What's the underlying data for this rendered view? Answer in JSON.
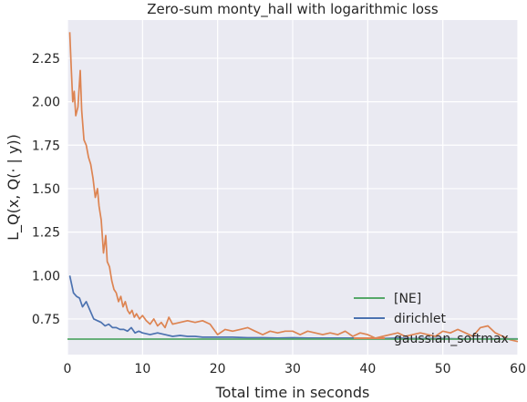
{
  "chart_data": {
    "type": "line",
    "title": "Zero-sum monty_hall with logarithmic loss",
    "xlabel": "Total time in seconds",
    "ylabel": "L_Q(x, Q(· | y))",
    "xlim": [
      0,
      60
    ],
    "ylim": [
      0.545,
      2.47
    ],
    "x_ticks": [
      0,
      10,
      20,
      30,
      40,
      50,
      60
    ],
    "y_ticks": [
      0.75,
      1.0,
      1.25,
      1.5,
      1.75,
      2.0,
      2.25
    ],
    "y_tick_labels": [
      "0.75",
      "1.00",
      "1.25",
      "1.50",
      "1.75",
      "2.00",
      "2.25"
    ],
    "grid": true,
    "legend_position": "bottom-right",
    "series": [
      {
        "name": "[NE]",
        "color": "#55a868",
        "x": [
          0,
          60
        ],
        "y": [
          0.634,
          0.634
        ]
      },
      {
        "name": "dirichlet",
        "color": "#4c72b0",
        "x": [
          0.3,
          0.8,
          1.2,
          1.6,
          2.0,
          2.5,
          3.0,
          3.5,
          4.0,
          4.5,
          5.0,
          5.5,
          6.0,
          6.5,
          7.0,
          7.5,
          8.0,
          8.5,
          9.0,
          9.5,
          10.0,
          11.0,
          12.0,
          13.0,
          14.0,
          15.0,
          16.0,
          17.0,
          18.0,
          19.0,
          20.0,
          22.0,
          24.0,
          26.0,
          28.0,
          30.0,
          32.0,
          34.0,
          36.0,
          38.0,
          40.0,
          42.0,
          44.0,
          46.0,
          48.0,
          50.0,
          52.0,
          54.0,
          56.0,
          58.0,
          60.0
        ],
        "y": [
          1.0,
          0.9,
          0.88,
          0.87,
          0.82,
          0.85,
          0.8,
          0.75,
          0.74,
          0.73,
          0.71,
          0.72,
          0.7,
          0.7,
          0.69,
          0.69,
          0.68,
          0.7,
          0.67,
          0.68,
          0.67,
          0.66,
          0.67,
          0.66,
          0.65,
          0.655,
          0.65,
          0.65,
          0.645,
          0.645,
          0.645,
          0.645,
          0.642,
          0.642,
          0.64,
          0.642,
          0.64,
          0.64,
          0.64,
          0.64,
          0.64,
          0.638,
          0.64,
          0.638,
          0.638,
          0.638,
          0.636,
          0.636,
          0.636,
          0.636,
          0.636
        ]
      },
      {
        "name": "gaussian_softmax",
        "color": "#dd8452",
        "x": [
          0.3,
          0.5,
          0.7,
          0.9,
          1.1,
          1.4,
          1.7,
          1.9,
          2.2,
          2.5,
          2.8,
          3.1,
          3.4,
          3.7,
          4.0,
          4.2,
          4.5,
          4.8,
          5.1,
          5.3,
          5.6,
          5.9,
          6.2,
          6.5,
          6.8,
          7.1,
          7.4,
          7.7,
          8.0,
          8.3,
          8.6,
          8.9,
          9.2,
          9.6,
          10.0,
          10.5,
          11.0,
          11.5,
          12.0,
          12.5,
          13.0,
          13.5,
          14.0,
          15.0,
          16.0,
          17.0,
          18.0,
          19.0,
          20.0,
          21.0,
          22.0,
          23.0,
          24.0,
          25.0,
          26.0,
          27.0,
          28.0,
          29.0,
          30.0,
          31.0,
          32.0,
          33.0,
          34.0,
          35.0,
          36.0,
          37.0,
          38.0,
          39.0,
          40.0,
          41.0,
          42.0,
          43.0,
          44.0,
          45.0,
          46.0,
          47.0,
          48.0,
          49.0,
          50.0,
          51.0,
          52.0,
          53.0,
          54.0,
          55.0,
          56.0,
          57.0,
          58.0,
          59.0,
          60.0
        ],
        "y": [
          2.4,
          2.2,
          2.0,
          2.06,
          1.92,
          1.97,
          2.18,
          1.95,
          1.78,
          1.75,
          1.68,
          1.64,
          1.56,
          1.45,
          1.5,
          1.4,
          1.32,
          1.13,
          1.23,
          1.08,
          1.05,
          0.97,
          0.92,
          0.9,
          0.85,
          0.88,
          0.82,
          0.85,
          0.8,
          0.78,
          0.8,
          0.76,
          0.78,
          0.75,
          0.77,
          0.74,
          0.72,
          0.75,
          0.71,
          0.73,
          0.7,
          0.76,
          0.72,
          0.73,
          0.74,
          0.73,
          0.74,
          0.72,
          0.66,
          0.69,
          0.68,
          0.69,
          0.7,
          0.68,
          0.66,
          0.68,
          0.67,
          0.68,
          0.68,
          0.66,
          0.68,
          0.67,
          0.66,
          0.67,
          0.66,
          0.68,
          0.65,
          0.67,
          0.66,
          0.64,
          0.65,
          0.66,
          0.67,
          0.65,
          0.66,
          0.67,
          0.66,
          0.65,
          0.68,
          0.67,
          0.69,
          0.67,
          0.65,
          0.7,
          0.71,
          0.67,
          0.65,
          0.63,
          0.62
        ]
      }
    ]
  }
}
